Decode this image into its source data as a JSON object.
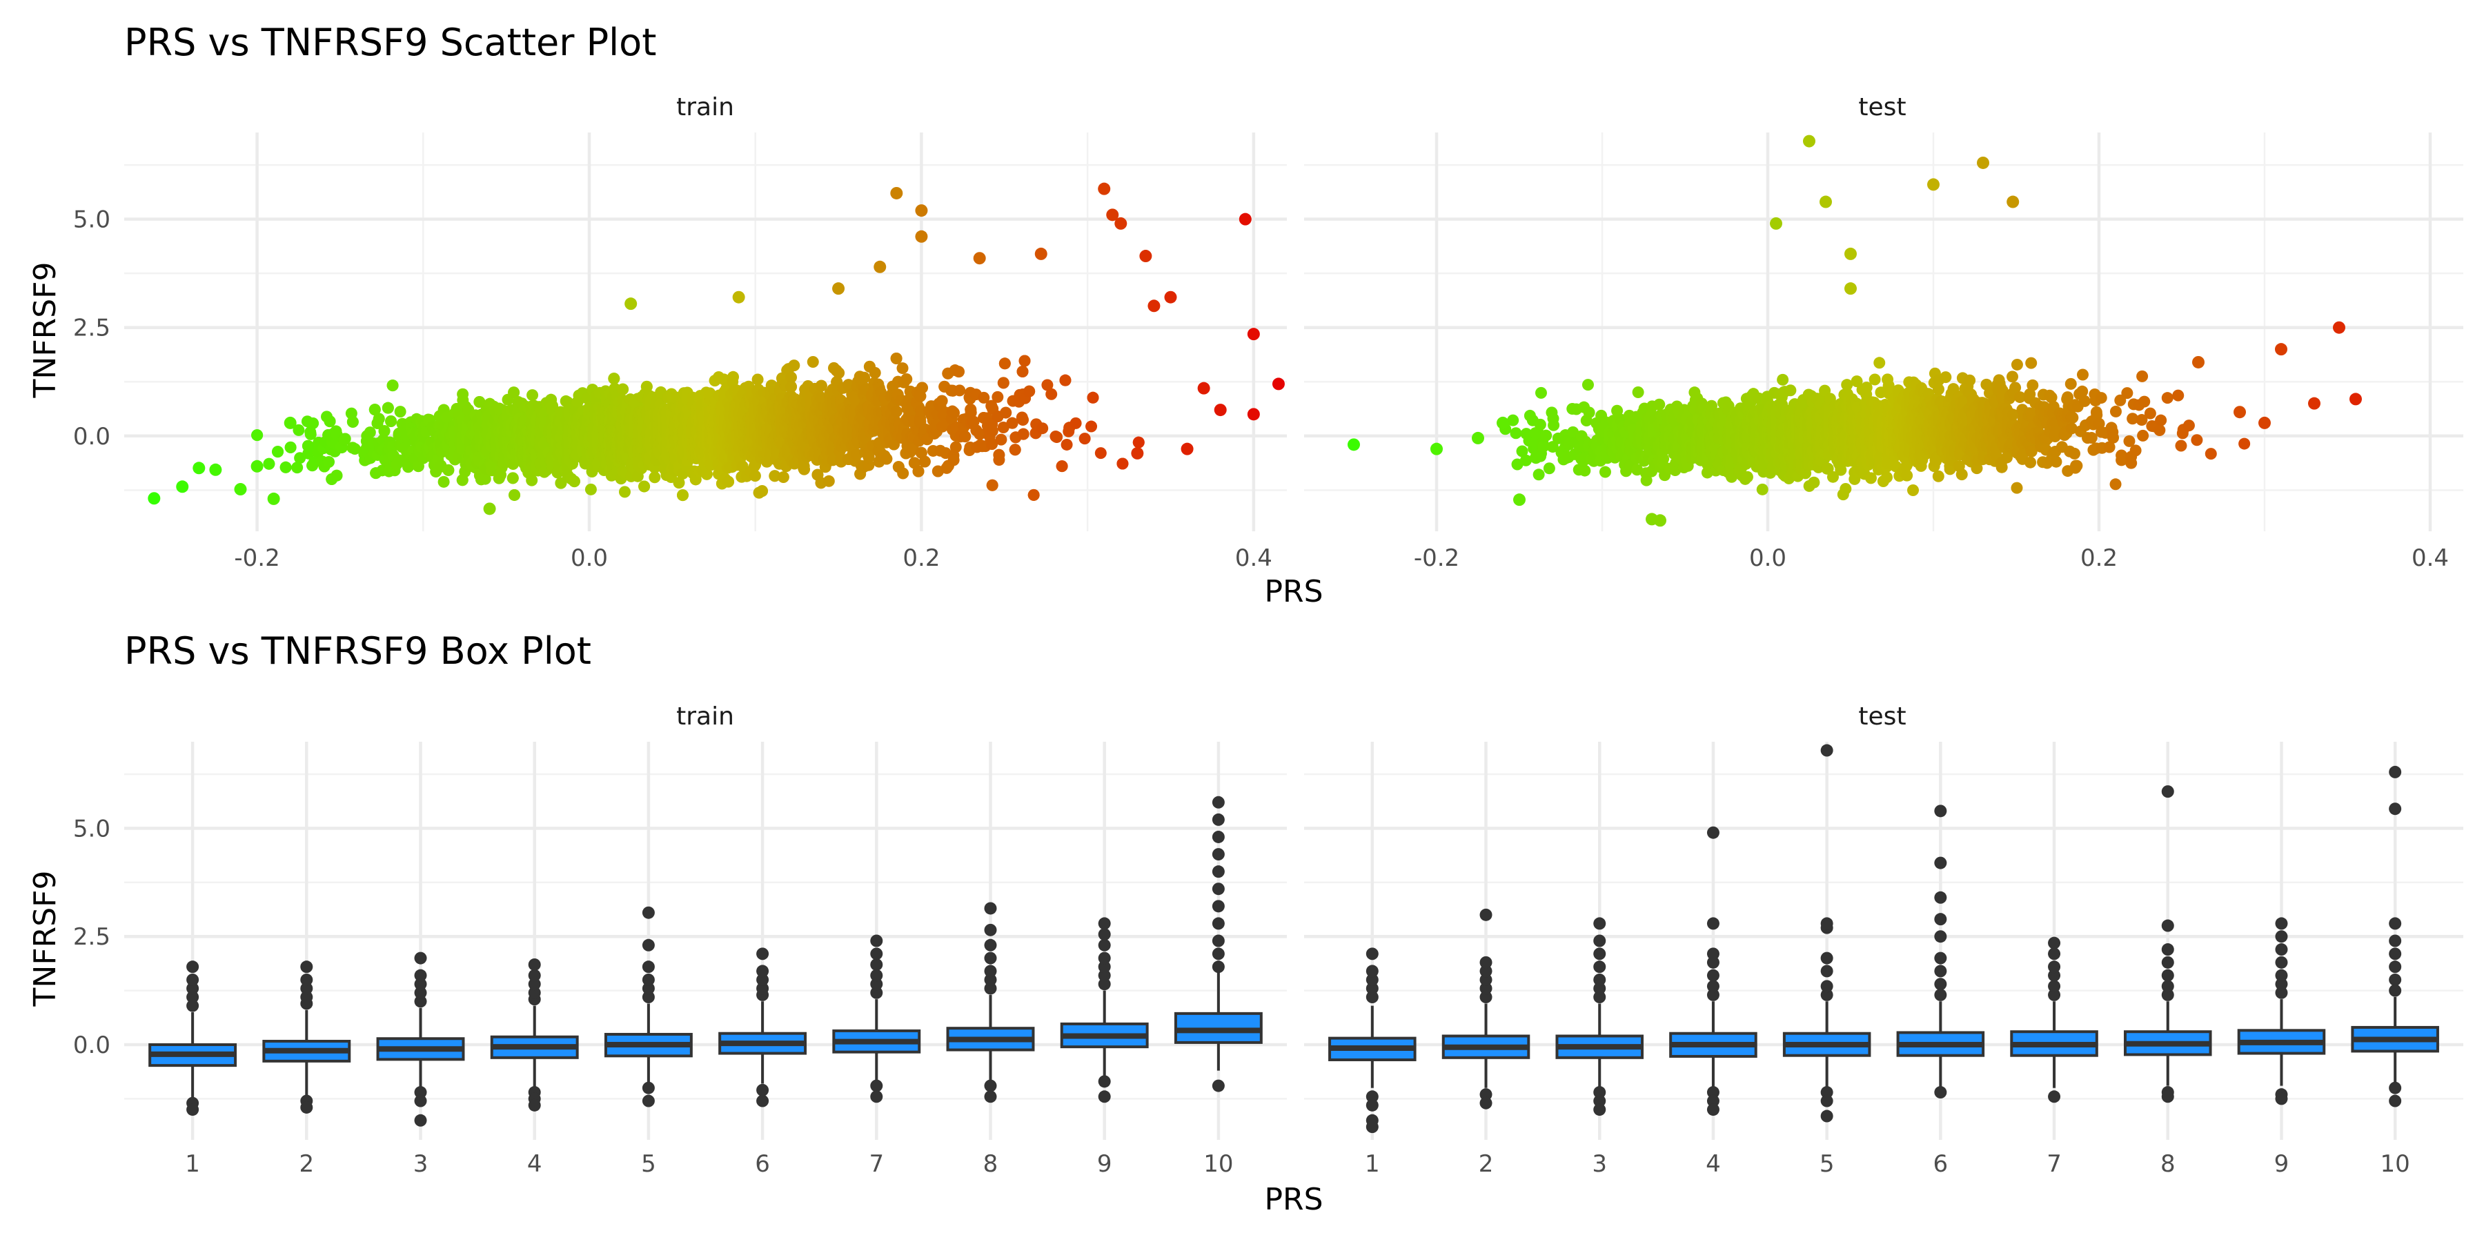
{
  "chart_data": [
    {
      "type": "scatter",
      "title": "PRS vs TNFRSF9 Scatter Plot",
      "xlabel": "PRS",
      "ylabel": "TNFRSF9",
      "facets": [
        "train",
        "test"
      ],
      "xlim": [
        -0.28,
        0.42
      ],
      "ylim": [
        -2.2,
        7.0
      ],
      "x_ticks": [
        -0.2,
        0.0,
        0.2,
        0.4
      ],
      "x_tick_labels": [
        "-0.2",
        "0.0",
        "0.2",
        "0.4"
      ],
      "y_ticks": [
        0.0,
        2.5,
        5.0
      ],
      "y_tick_labels": [
        "0.0",
        "2.5",
        "5.0"
      ],
      "color_scale": {
        "low": "#33ff00",
        "mid": "#bfbf00",
        "high": "#e60000",
        "low_value": -0.27,
        "high_value": 0.42
      },
      "legend": "none",
      "grid": true,
      "highlight_points": {
        "train": [
          [
            -0.262,
            -1.44
          ],
          [
            -0.245,
            -1.17
          ],
          [
            -0.235,
            -0.74
          ],
          [
            -0.225,
            -0.78
          ],
          [
            -0.21,
            -1.23
          ],
          [
            -0.2,
            -0.7
          ],
          [
            -0.19,
            -1.45
          ],
          [
            -0.18,
            0.3
          ],
          [
            -0.06,
            -1.68
          ],
          [
            0.025,
            3.05
          ],
          [
            0.09,
            3.2
          ],
          [
            0.15,
            3.4
          ],
          [
            0.175,
            3.9
          ],
          [
            0.185,
            5.6
          ],
          [
            0.2,
            5.2
          ],
          [
            0.2,
            4.6
          ],
          [
            0.235,
            4.1
          ],
          [
            0.272,
            4.2
          ],
          [
            0.31,
            5.7
          ],
          [
            0.315,
            5.1
          ],
          [
            0.32,
            4.9
          ],
          [
            0.335,
            4.15
          ],
          [
            0.34,
            3.0
          ],
          [
            0.35,
            3.2
          ],
          [
            0.33,
            -0.4
          ],
          [
            0.36,
            -0.3
          ],
          [
            0.38,
            0.6
          ],
          [
            0.395,
            5.0
          ],
          [
            0.4,
            0.5
          ],
          [
            0.4,
            2.35
          ],
          [
            0.415,
            1.2
          ],
          [
            0.37,
            1.1
          ]
        ],
        "test": [
          [
            -0.25,
            -0.2
          ],
          [
            -0.2,
            -0.3
          ],
          [
            -0.175,
            -0.05
          ],
          [
            -0.16,
            0.3
          ],
          [
            -0.14,
            -0.5
          ],
          [
            -0.15,
            -1.47
          ],
          [
            -0.07,
            -1.92
          ],
          [
            -0.065,
            -1.95
          ],
          [
            0.005,
            4.9
          ],
          [
            0.025,
            6.8
          ],
          [
            0.035,
            5.4
          ],
          [
            0.05,
            4.2
          ],
          [
            0.05,
            3.4
          ],
          [
            0.1,
            5.8
          ],
          [
            0.13,
            6.3
          ],
          [
            0.148,
            5.4
          ],
          [
            0.26,
            1.7
          ],
          [
            0.31,
            2.0
          ],
          [
            0.345,
            2.5
          ],
          [
            0.33,
            0.75
          ],
          [
            0.355,
            0.85
          ],
          [
            0.3,
            0.3
          ],
          [
            0.285,
            0.55
          ]
        ]
      }
    },
    {
      "type": "box",
      "title": "PRS vs TNFRSF9 Box Plot",
      "xlabel": "PRS",
      "ylabel": "TNFRSF9",
      "facets": [
        "train",
        "test"
      ],
      "categories": [
        "1",
        "2",
        "3",
        "4",
        "5",
        "6",
        "7",
        "8",
        "9",
        "10"
      ],
      "ylim": [
        -2.2,
        7.0
      ],
      "y_ticks": [
        0.0,
        2.5,
        5.0
      ],
      "y_tick_labels": [
        "0.0",
        "2.5",
        "5.0"
      ],
      "fill": "#1e90ff",
      "grid": true,
      "series": [
        {
          "facet": "train",
          "boxes": [
            {
              "q1": -0.48,
              "median": -0.22,
              "q3": 0.0,
              "whisker_low": -1.25,
              "whisker_high": 0.75,
              "outliers": [
                0.9,
                1.1,
                1.3,
                1.5,
                1.8,
                -1.35,
                -1.5
              ]
            },
            {
              "q1": -0.38,
              "median": -0.14,
              "q3": 0.08,
              "whisker_low": -1.2,
              "whisker_high": 0.8,
              "outliers": [
                0.95,
                1.1,
                1.3,
                1.5,
                1.8,
                -1.3,
                -1.45
              ]
            },
            {
              "q1": -0.34,
              "median": -0.1,
              "q3": 0.14,
              "whisker_low": -1.05,
              "whisker_high": 0.85,
              "outliers": [
                1.0,
                1.2,
                1.4,
                1.6,
                2.0,
                -1.1,
                -1.3,
                -1.75
              ]
            },
            {
              "q1": -0.3,
              "median": -0.05,
              "q3": 0.18,
              "whisker_low": -1.0,
              "whisker_high": 0.9,
              "outliers": [
                1.05,
                1.2,
                1.4,
                1.6,
                1.85,
                -1.1,
                -1.25,
                -1.4
              ]
            },
            {
              "q1": -0.26,
              "median": 0.0,
              "q3": 0.24,
              "whisker_low": -0.95,
              "whisker_high": 0.95,
              "outliers": [
                1.1,
                1.3,
                1.5,
                1.8,
                2.3,
                3.05,
                -1.0,
                -1.3
              ]
            },
            {
              "q1": -0.2,
              "median": 0.03,
              "q3": 0.26,
              "whisker_low": -0.9,
              "whisker_high": 1.0,
              "outliers": [
                1.15,
                1.3,
                1.5,
                1.7,
                2.1,
                -1.05,
                -1.3
              ]
            },
            {
              "q1": -0.17,
              "median": 0.07,
              "q3": 0.32,
              "whisker_low": -0.85,
              "whisker_high": 1.05,
              "outliers": [
                1.2,
                1.4,
                1.6,
                1.85,
                2.1,
                2.4,
                -0.95,
                -1.2
              ]
            },
            {
              "q1": -0.12,
              "median": 0.12,
              "q3": 0.38,
              "whisker_low": -0.85,
              "whisker_high": 1.15,
              "outliers": [
                1.3,
                1.5,
                1.7,
                2.0,
                2.3,
                2.65,
                3.15,
                -0.95,
                -1.2
              ]
            },
            {
              "q1": -0.05,
              "median": 0.2,
              "q3": 0.48,
              "whisker_low": -0.75,
              "whisker_high": 1.25,
              "outliers": [
                1.4,
                1.6,
                1.8,
                2.0,
                2.3,
                2.55,
                2.8,
                -0.85,
                -1.2
              ]
            },
            {
              "q1": 0.05,
              "median": 0.33,
              "q3": 0.72,
              "whisker_low": -0.6,
              "whisker_high": 1.7,
              "outliers": [
                1.8,
                2.1,
                2.4,
                2.8,
                3.2,
                3.6,
                4.0,
                4.4,
                4.8,
                5.2,
                5.6,
                -0.95
              ]
            }
          ]
        },
        {
          "facet": "test",
          "boxes": [
            {
              "q1": -0.35,
              "median": -0.08,
              "q3": 0.15,
              "whisker_low": -1.0,
              "whisker_high": 0.9,
              "outliers": [
                1.1,
                1.3,
                1.5,
                1.7,
                2.1,
                -1.2,
                -1.4,
                -1.75,
                -1.9
              ]
            },
            {
              "q1": -0.3,
              "median": -0.06,
              "q3": 0.2,
              "whisker_low": -1.0,
              "whisker_high": 0.95,
              "outliers": [
                1.1,
                1.3,
                1.5,
                1.7,
                1.9,
                3.0,
                -1.15,
                -1.35
              ]
            },
            {
              "q1": -0.3,
              "median": -0.05,
              "q3": 0.2,
              "whisker_low": -1.0,
              "whisker_high": 0.95,
              "outliers": [
                1.1,
                1.3,
                1.5,
                1.8,
                2.1,
                2.4,
                2.8,
                -1.1,
                -1.3,
                -1.5
              ]
            },
            {
              "q1": -0.27,
              "median": 0.0,
              "q3": 0.26,
              "whisker_low": -1.0,
              "whisker_high": 1.0,
              "outliers": [
                1.15,
                1.35,
                1.6,
                1.9,
                2.1,
                2.8,
                4.9,
                -1.1,
                -1.3,
                -1.5
              ]
            },
            {
              "q1": -0.25,
              "median": 0.0,
              "q3": 0.26,
              "whisker_low": -1.0,
              "whisker_high": 1.0,
              "outliers": [
                1.15,
                1.35,
                1.7,
                2.0,
                2.7,
                2.8,
                6.8,
                -1.1,
                -1.3,
                -1.65
              ]
            },
            {
              "q1": -0.25,
              "median": 0.0,
              "q3": 0.28,
              "whisker_low": -1.0,
              "whisker_high": 1.0,
              "outliers": [
                1.15,
                1.4,
                1.7,
                2.0,
                2.5,
                2.9,
                3.4,
                4.2,
                5.4,
                -1.1
              ]
            },
            {
              "q1": -0.25,
              "median": 0.0,
              "q3": 0.3,
              "whisker_low": -1.0,
              "whisker_high": 1.0,
              "outliers": [
                1.15,
                1.35,
                1.6,
                1.8,
                2.1,
                2.35,
                -1.2
              ]
            },
            {
              "q1": -0.23,
              "median": 0.02,
              "q3": 0.3,
              "whisker_low": -0.95,
              "whisker_high": 1.0,
              "outliers": [
                1.15,
                1.35,
                1.6,
                1.9,
                2.2,
                2.75,
                5.85,
                -1.1,
                -1.2
              ]
            },
            {
              "q1": -0.2,
              "median": 0.05,
              "q3": 0.33,
              "whisker_low": -0.95,
              "whisker_high": 1.05,
              "outliers": [
                1.2,
                1.4,
                1.6,
                1.9,
                2.2,
                2.5,
                2.8,
                -1.15,
                -1.25
              ]
            },
            {
              "q1": -0.15,
              "median": 0.12,
              "q3": 0.4,
              "whisker_low": -0.9,
              "whisker_high": 1.1,
              "outliers": [
                1.25,
                1.5,
                1.8,
                2.1,
                2.4,
                2.8,
                5.45,
                6.3,
                -1.0,
                -1.3
              ]
            }
          ]
        }
      ]
    }
  ]
}
